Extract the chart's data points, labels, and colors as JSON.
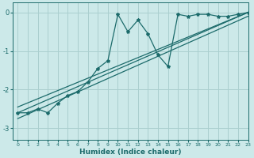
{
  "title": "",
  "xlabel": "Humidex (Indice chaleur)",
  "ylabel": "",
  "xlim": [
    -0.5,
    23
  ],
  "ylim": [
    -3.3,
    0.25
  ],
  "yticks": [
    0,
    -1,
    -2,
    -3
  ],
  "xticks": [
    0,
    1,
    2,
    3,
    4,
    5,
    6,
    7,
    8,
    9,
    10,
    11,
    12,
    13,
    14,
    15,
    16,
    17,
    18,
    19,
    20,
    21,
    22,
    23
  ],
  "bg_color": "#cce9e9",
  "grid_color": "#aacfcf",
  "line_color": "#1c6b6b",
  "marker": "*",
  "main_x": [
    0,
    1,
    2,
    3,
    4,
    5,
    6,
    7,
    8,
    9,
    10,
    11,
    12,
    13,
    14,
    15,
    16,
    17,
    18,
    19,
    20,
    21,
    22,
    23
  ],
  "main_y": [
    -2.6,
    -2.6,
    -2.5,
    -2.6,
    -2.35,
    -2.15,
    -2.05,
    -1.8,
    -1.45,
    -1.25,
    -0.05,
    -0.5,
    -0.2,
    -0.55,
    -1.1,
    -1.4,
    -0.05,
    -0.1,
    -0.05,
    -0.05,
    -0.1,
    -0.1,
    -0.05,
    0.0
  ],
  "line1_x": [
    0,
    23
  ],
  "line1_y": [
    -2.6,
    0.0
  ],
  "line2_x": [
    0,
    23
  ],
  "line2_y": [
    -2.75,
    -0.1
  ],
  "line3_x": [
    0,
    23
  ],
  "line3_y": [
    -2.45,
    0.0
  ]
}
